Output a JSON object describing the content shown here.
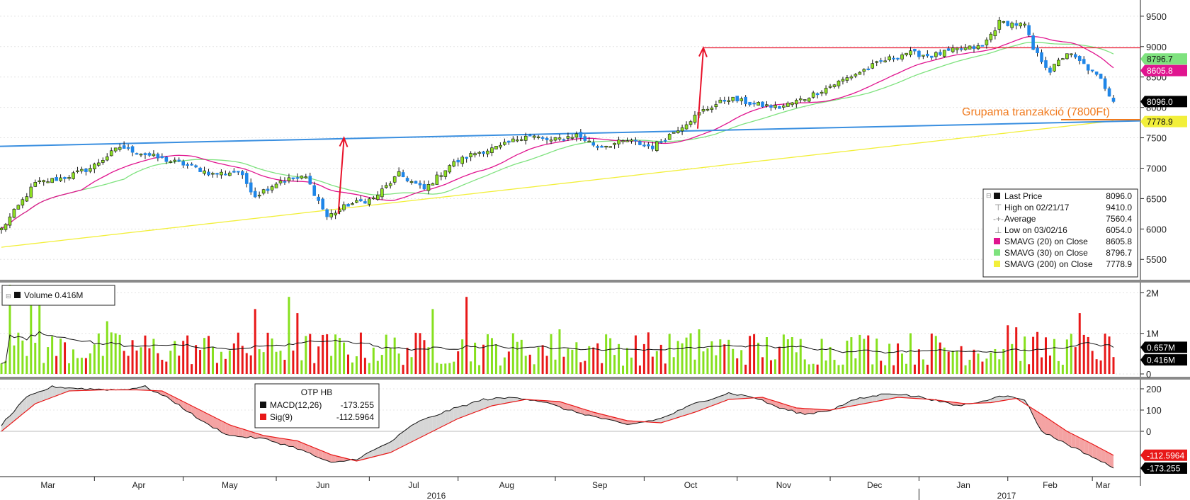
{
  "colors": {
    "up": "#8ee022",
    "down": "#1f86e8",
    "vol_up": "#86e01e",
    "vol_down": "#e81818",
    "sma20": "#e0158f",
    "sma30": "#7ee27e",
    "sma200": "#f2ef3a",
    "trend": "#3a8fe0",
    "arrow": "#e8122a",
    "annotation": "#f07a1e",
    "macd": "#111111",
    "signal": "#e81818"
  },
  "chart_data": [
    {
      "type": "candlestick",
      "title": "",
      "security": "OTP HB",
      "x_months": [
        "Mar",
        "Apr",
        "May",
        "Jun",
        "Jul",
        "Aug",
        "Sep",
        "Oct",
        "Nov",
        "Dec",
        "Jan",
        "Feb",
        "Mar"
      ],
      "x_years": [
        "2016",
        "2017"
      ],
      "y_ticks": [
        5500,
        6000,
        6500,
        7000,
        7500,
        8000,
        8500,
        9000,
        9500
      ],
      "ylim": [
        5200,
        9650
      ],
      "close_anchors": [
        [
          0,
          6000
        ],
        [
          8,
          6750
        ],
        [
          15,
          6850
        ],
        [
          21,
          7000
        ],
        [
          28,
          7350
        ],
        [
          33,
          7250
        ],
        [
          38,
          7150
        ],
        [
          44,
          7050
        ],
        [
          50,
          6900
        ],
        [
          56,
          6950
        ],
        [
          60,
          6550
        ],
        [
          66,
          6800
        ],
        [
          72,
          6850
        ],
        [
          77,
          6200
        ],
        [
          82,
          6400
        ],
        [
          88,
          6500
        ],
        [
          94,
          6900
        ],
        [
          100,
          6650
        ],
        [
          106,
          7050
        ],
        [
          112,
          7250
        ],
        [
          118,
          7350
        ],
        [
          124,
          7550
        ],
        [
          130,
          7450
        ],
        [
          136,
          7550
        ],
        [
          141,
          7350
        ],
        [
          148,
          7450
        ],
        [
          154,
          7350
        ],
        [
          160,
          7650
        ],
        [
          166,
          7950
        ],
        [
          172,
          8150
        ],
        [
          178,
          8050
        ],
        [
          184,
          8000
        ],
        [
          190,
          8150
        ],
        [
          196,
          8350
        ],
        [
          202,
          8550
        ],
        [
          208,
          8750
        ],
        [
          214,
          8900
        ],
        [
          220,
          8850
        ],
        [
          226,
          8950
        ],
        [
          232,
          9000
        ],
        [
          236,
          9400
        ],
        [
          242,
          9350
        ],
        [
          244,
          8950
        ],
        [
          248,
          8600
        ],
        [
          252,
          8900
        ],
        [
          256,
          8700
        ],
        [
          260,
          8450
        ],
        [
          263,
          8096
        ]
      ],
      "stats": {
        "last_price": {
          "label": "Last Price",
          "value": "8096.0"
        },
        "high": {
          "label": "High on 02/21/17",
          "value": "9410.0"
        },
        "average": {
          "label": "Average",
          "value": "7560.4"
        },
        "low": {
          "label": "Low on 03/02/16",
          "value": "6054.0"
        }
      },
      "series": [
        {
          "name": "SMAVG (20) on Close",
          "last": "8605.8"
        },
        {
          "name": "SMAVG (30) on Close",
          "last": "8796.7"
        },
        {
          "name": "SMAVG (200) on Close",
          "last": "7778.9"
        }
      ],
      "trendline": {
        "start": 7360,
        "end": 7778.9
      },
      "horizontal_level": 8980,
      "annotation": "Grupama tranzakció (7800Ft)",
      "arrows": [
        {
          "from": 6250,
          "to": 7500
        },
        {
          "from": 7650,
          "to": 8980
        }
      ]
    },
    {
      "type": "bar",
      "title": "Volume",
      "legend_text": "Volume 0.416M",
      "y_ticks": [
        "2M",
        "1M",
        "0"
      ],
      "ylim": [
        0,
        2.2
      ],
      "last_value": "0.416M",
      "moving_average_last": "0.657M",
      "volume_spikes": [
        [
          2,
          2.3
        ],
        [
          7,
          1.8
        ],
        [
          9,
          2.0
        ],
        [
          25,
          1.3
        ],
        [
          60,
          1.6
        ],
        [
          68,
          1.9
        ],
        [
          70,
          1.5
        ],
        [
          102,
          1.6
        ],
        [
          110,
          1.9
        ],
        [
          132,
          1.1
        ],
        [
          165,
          1.1
        ],
        [
          205,
          0.95
        ],
        [
          238,
          1.2
        ],
        [
          240,
          1.15
        ],
        [
          255,
          1.5
        ]
      ]
    },
    {
      "type": "line",
      "title": "OTP HB",
      "y_ticks": [
        200,
        100,
        0
      ],
      "ylim": [
        -210,
        230
      ],
      "series": [
        {
          "name": "MACD(12,26)",
          "last": "-173.255",
          "anchors": [
            [
              0,
              30
            ],
            [
              6,
              160
            ],
            [
              12,
              210
            ],
            [
              20,
              200
            ],
            [
              28,
              195
            ],
            [
              34,
              210
            ],
            [
              40,
              150
            ],
            [
              48,
              40
            ],
            [
              54,
              -20
            ],
            [
              62,
              -35
            ],
            [
              70,
              -80
            ],
            [
              78,
              -150
            ],
            [
              84,
              -130
            ],
            [
              92,
              -50
            ],
            [
              98,
              40
            ],
            [
              106,
              100
            ],
            [
              114,
              150
            ],
            [
              122,
              160
            ],
            [
              128,
              140
            ],
            [
              134,
              100
            ],
            [
              142,
              60
            ],
            [
              148,
              30
            ],
            [
              156,
              60
            ],
            [
              164,
              130
            ],
            [
              172,
              180
            ],
            [
              178,
              160
            ],
            [
              184,
              110
            ],
            [
              190,
              80
            ],
            [
              196,
              100
            ],
            [
              202,
              150
            ],
            [
              210,
              180
            ],
            [
              218,
              160
            ],
            [
              226,
              120
            ],
            [
              232,
              140
            ],
            [
              236,
              170
            ],
            [
              242,
              150
            ],
            [
              246,
              0
            ],
            [
              252,
              -60
            ],
            [
              258,
              -120
            ],
            [
              263,
              -173
            ]
          ]
        },
        {
          "name": "Sig(9)",
          "last": "-112.5964",
          "anchors": [
            [
              0,
              0
            ],
            [
              8,
              130
            ],
            [
              16,
              190
            ],
            [
              24,
              195
            ],
            [
              32,
              195
            ],
            [
              38,
              190
            ],
            [
              46,
              110
            ],
            [
              54,
              30
            ],
            [
              62,
              -20
            ],
            [
              70,
              -45
            ],
            [
              78,
              -110
            ],
            [
              84,
              -140
            ],
            [
              92,
              -100
            ],
            [
              100,
              -20
            ],
            [
              108,
              60
            ],
            [
              116,
              120
            ],
            [
              124,
              150
            ],
            [
              132,
              140
            ],
            [
              140,
              90
            ],
            [
              148,
              50
            ],
            [
              156,
              40
            ],
            [
              164,
              90
            ],
            [
              172,
              150
            ],
            [
              180,
              160
            ],
            [
              188,
              110
            ],
            [
              196,
              100
            ],
            [
              204,
              130
            ],
            [
              212,
              160
            ],
            [
              220,
              150
            ],
            [
              228,
              130
            ],
            [
              234,
              135
            ],
            [
              240,
              155
            ],
            [
              246,
              80
            ],
            [
              252,
              0
            ],
            [
              258,
              -60
            ],
            [
              263,
              -113
            ]
          ]
        }
      ]
    }
  ]
}
